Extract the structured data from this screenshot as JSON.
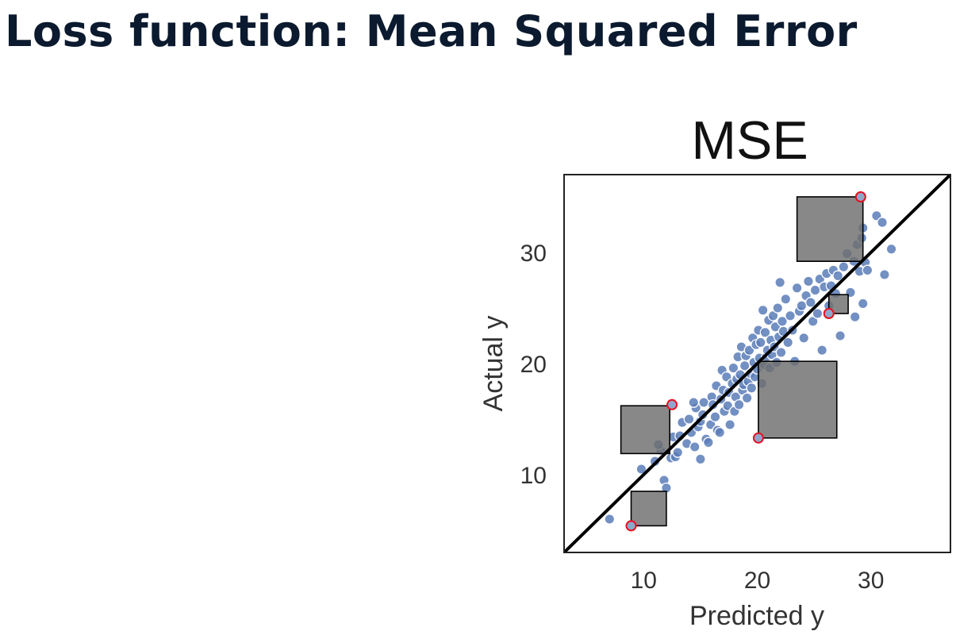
{
  "page": {
    "title": "Loss function: Mean Squared Error"
  },
  "chart_data": {
    "type": "scatter",
    "title": "MSE",
    "xlabel": "Predicted y",
    "ylabel": "Actual y",
    "xlim": [
      3,
      37
    ],
    "ylim": [
      3,
      37
    ],
    "xticks": [
      10,
      20,
      30
    ],
    "yticks": [
      10,
      20,
      30
    ],
    "grid": false,
    "reference_line": "y = x",
    "colors": {
      "points": "#5b7db8",
      "highlight_fill": "#8fa6cc",
      "highlight_edge": "#e8101e",
      "squares": "#6e6e6e",
      "line": "#000000"
    },
    "points": [
      [
        7.0,
        6.0
      ],
      [
        9.8,
        10.5
      ],
      [
        11.0,
        11.2
      ],
      [
        11.5,
        12.2
      ],
      [
        11.8,
        9.5
      ],
      [
        12.0,
        8.8
      ],
      [
        11.3,
        12.7
      ],
      [
        12.4,
        11.5
      ],
      [
        12.8,
        11.6
      ],
      [
        12.6,
        13.4
      ],
      [
        13.2,
        13.5
      ],
      [
        13.4,
        14.7
      ],
      [
        13.0,
        12.0
      ],
      [
        13.8,
        12.8
      ],
      [
        14.0,
        15.0
      ],
      [
        14.2,
        13.8
      ],
      [
        14.5,
        12.5
      ],
      [
        14.8,
        14.3
      ],
      [
        14.6,
        16.0
      ],
      [
        14.4,
        16.5
      ],
      [
        15.0,
        14.8
      ],
      [
        15.2,
        15.4
      ],
      [
        15.3,
        16.5
      ],
      [
        15.5,
        13.2
      ],
      [
        15.7,
        12.9
      ],
      [
        15.0,
        11.4
      ],
      [
        15.9,
        14.5
      ],
      [
        16.0,
        17.0
      ],
      [
        16.1,
        16.3
      ],
      [
        16.3,
        15.2
      ],
      [
        16.4,
        18.0
      ],
      [
        16.5,
        14.0
      ],
      [
        16.7,
        13.8
      ],
      [
        16.8,
        16.8
      ],
      [
        16.9,
        19.4
      ],
      [
        17.0,
        17.6
      ],
      [
        17.1,
        15.7
      ],
      [
        17.3,
        18.8
      ],
      [
        17.4,
        16.2
      ],
      [
        17.5,
        17.4
      ],
      [
        17.6,
        14.5
      ],
      [
        17.8,
        18.2
      ],
      [
        17.9,
        19.6
      ],
      [
        18.0,
        15.7
      ],
      [
        18.1,
        17.0
      ],
      [
        18.2,
        18.6
      ],
      [
        18.3,
        20.6
      ],
      [
        18.4,
        16.3
      ],
      [
        18.5,
        19.0
      ],
      [
        18.6,
        21.5
      ],
      [
        18.7,
        17.6
      ],
      [
        18.8,
        18.1
      ],
      [
        18.9,
        19.8
      ],
      [
        19.0,
        20.7
      ],
      [
        19.1,
        16.9
      ],
      [
        19.2,
        18.4
      ],
      [
        19.3,
        21.2
      ],
      [
        19.4,
        19.1
      ],
      [
        19.5,
        17.8
      ],
      [
        19.6,
        22.3
      ],
      [
        19.7,
        20.1
      ],
      [
        19.8,
        18.8
      ],
      [
        19.9,
        21.7
      ],
      [
        20.0,
        19.5
      ],
      [
        20.1,
        23.0
      ],
      [
        20.2,
        20.5
      ],
      [
        20.3,
        21.9
      ],
      [
        20.4,
        18.2
      ],
      [
        20.5,
        24.8
      ],
      [
        20.6,
        19.9
      ],
      [
        20.7,
        22.8
      ],
      [
        20.8,
        20.6
      ],
      [
        20.9,
        21.2
      ],
      [
        21.0,
        23.9
      ],
      [
        21.1,
        19.6
      ],
      [
        21.2,
        22.1
      ],
      [
        21.3,
        20.8
      ],
      [
        21.4,
        24.3
      ],
      [
        21.5,
        21.5
      ],
      [
        21.6,
        23.3
      ],
      [
        21.7,
        20.1
      ],
      [
        21.8,
        25.0
      ],
      [
        21.9,
        22.4
      ],
      [
        22.0,
        27.3
      ],
      [
        22.1,
        21.0
      ],
      [
        22.2,
        23.8
      ],
      [
        22.3,
        22.9
      ],
      [
        22.5,
        25.8
      ],
      [
        22.7,
        21.9
      ],
      [
        22.9,
        24.3
      ],
      [
        23.1,
        23.0
      ],
      [
        23.3,
        20.2
      ],
      [
        23.5,
        26.8
      ],
      [
        23.7,
        24.7
      ],
      [
        23.9,
        25.2
      ],
      [
        24.1,
        22.3
      ],
      [
        24.3,
        26.1
      ],
      [
        24.5,
        27.4
      ],
      [
        24.7,
        25.5
      ],
      [
        24.9,
        23.8
      ],
      [
        25.1,
        26.6
      ],
      [
        25.3,
        24.5
      ],
      [
        25.5,
        27.6
      ],
      [
        25.7,
        21.2
      ],
      [
        25.9,
        26.9
      ],
      [
        26.1,
        28.1
      ],
      [
        26.3,
        25.2
      ],
      [
        26.5,
        27.0
      ],
      [
        26.7,
        28.4
      ],
      [
        26.9,
        26.3
      ],
      [
        27.1,
        27.9
      ],
      [
        27.3,
        22.5
      ],
      [
        27.6,
        28.7
      ],
      [
        27.9,
        29.9
      ],
      [
        28.2,
        26.4
      ],
      [
        28.5,
        29.2
      ],
      [
        28.8,
        30.7
      ],
      [
        29.0,
        28.3
      ],
      [
        29.3,
        25.4
      ],
      [
        29.2,
        31.3
      ],
      [
        29.5,
        29.1
      ],
      [
        29.3,
        32.2
      ],
      [
        28.6,
        24.2
      ],
      [
        30.5,
        33.3
      ],
      [
        31.0,
        32.7
      ],
      [
        31.8,
        30.3
      ],
      [
        31.2,
        28.0
      ],
      [
        29.7,
        28.4
      ]
    ],
    "highlighted_points": [
      {
        "x": 8.9,
        "y": 5.4
      },
      {
        "x": 12.5,
        "y": 16.3
      },
      {
        "x": 20.1,
        "y": 13.3
      },
      {
        "x": 26.3,
        "y": 24.5
      },
      {
        "x": 29.1,
        "y": 35.0
      }
    ],
    "squares": [
      {
        "x0": 8.9,
        "x1": 12.0,
        "y0": 5.4,
        "y1": 8.5
      },
      {
        "x0": 8.0,
        "x1": 12.3,
        "y0": 11.9,
        "y1": 16.2
      },
      {
        "x0": 20.1,
        "x1": 27.0,
        "y0": 13.3,
        "y1": 20.2
      },
      {
        "x0": 26.3,
        "x1": 28.0,
        "y0": 24.5,
        "y1": 26.2
      },
      {
        "x0": 23.5,
        "x1": 29.3,
        "y0": 29.2,
        "y1": 35.0
      }
    ]
  }
}
